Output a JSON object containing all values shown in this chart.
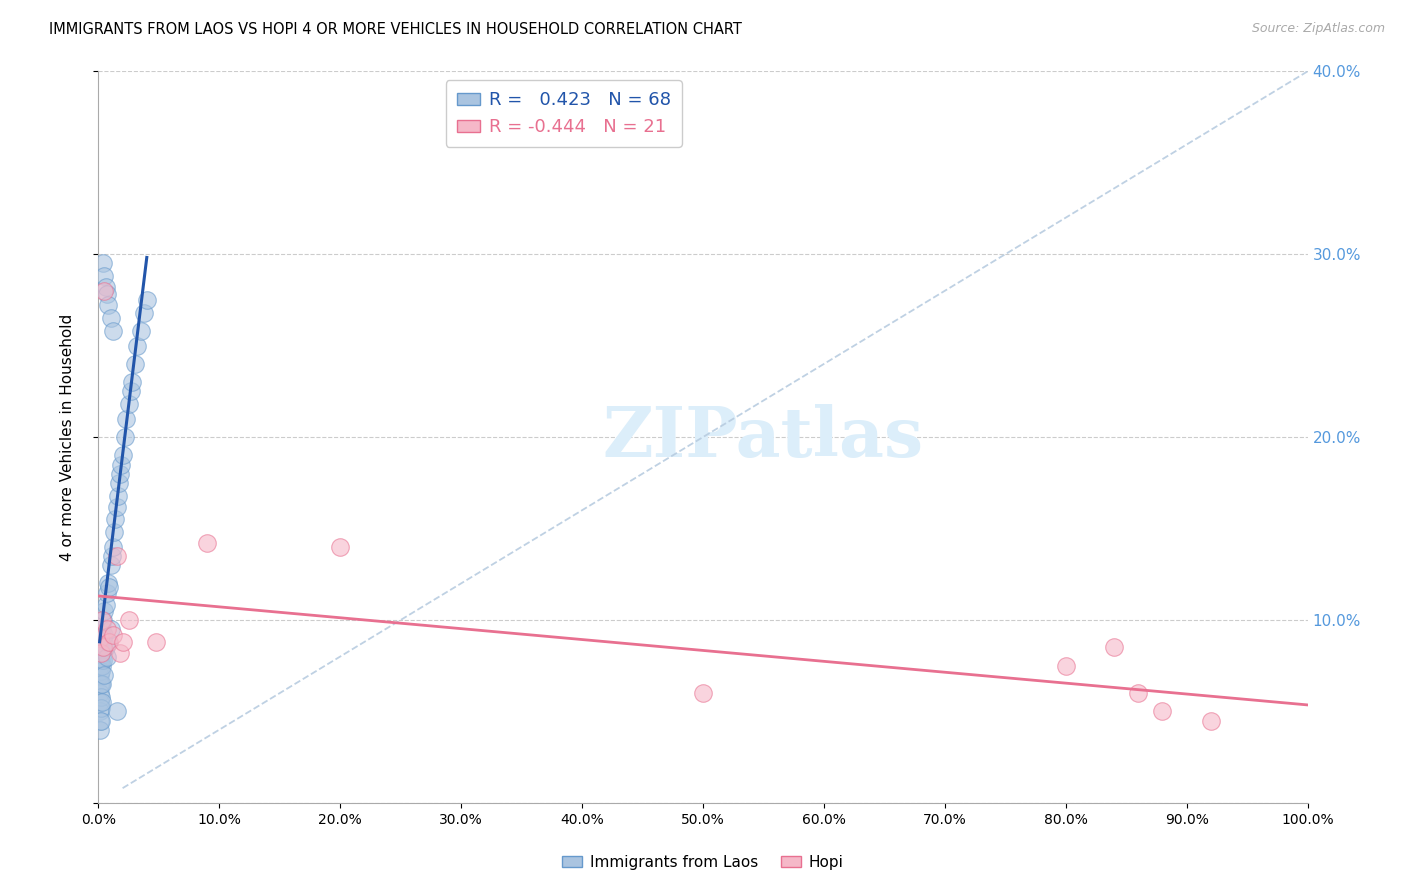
{
  "title": "IMMIGRANTS FROM LAOS VS HOPI 4 OR MORE VEHICLES IN HOUSEHOLD CORRELATION CHART",
  "source": "Source: ZipAtlas.com",
  "ylabel": "4 or more Vehicles in Household",
  "color_laos": "#aac4e0",
  "color_laos_edge": "#6699cc",
  "color_hopi": "#f5b8c8",
  "color_hopi_edge": "#e87090",
  "color_laos_line": "#2255aa",
  "color_hopi_line": "#e87090",
  "color_diagonal": "#b8cce0",
  "color_right_axis": "#5599dd",
  "watermark_color": "#dceefa",
  "R_laos": 0.423,
  "N_laos": 68,
  "R_hopi": -0.444,
  "N_hopi": 21,
  "legend_laos": "Immigrants from Laos",
  "legend_hopi": "Hopi",
  "laos_x": [
    0.001,
    0.001,
    0.001,
    0.001,
    0.001,
    0.001,
    0.001,
    0.001,
    0.001,
    0.001,
    0.001,
    0.002,
    0.002,
    0.002,
    0.002,
    0.002,
    0.002,
    0.002,
    0.002,
    0.002,
    0.003,
    0.003,
    0.003,
    0.003,
    0.003,
    0.004,
    0.004,
    0.004,
    0.005,
    0.005,
    0.005,
    0.006,
    0.006,
    0.007,
    0.007,
    0.008,
    0.008,
    0.009,
    0.01,
    0.01,
    0.011,
    0.012,
    0.013,
    0.014,
    0.015,
    0.016,
    0.017,
    0.018,
    0.019,
    0.02,
    0.022,
    0.023,
    0.025,
    0.027,
    0.028,
    0.03,
    0.032,
    0.035,
    0.038,
    0.04,
    0.004,
    0.005,
    0.006,
    0.007,
    0.008,
    0.01,
    0.012,
    0.015
  ],
  "laos_y": [
    0.09,
    0.085,
    0.08,
    0.075,
    0.07,
    0.065,
    0.06,
    0.055,
    0.05,
    0.045,
    0.04,
    0.095,
    0.088,
    0.082,
    0.078,
    0.072,
    0.065,
    0.058,
    0.052,
    0.045,
    0.095,
    0.085,
    0.075,
    0.065,
    0.055,
    0.1,
    0.09,
    0.078,
    0.105,
    0.092,
    0.07,
    0.108,
    0.085,
    0.115,
    0.08,
    0.12,
    0.088,
    0.118,
    0.13,
    0.095,
    0.135,
    0.14,
    0.148,
    0.155,
    0.162,
    0.168,
    0.175,
    0.18,
    0.185,
    0.19,
    0.2,
    0.21,
    0.218,
    0.225,
    0.23,
    0.24,
    0.25,
    0.258,
    0.268,
    0.275,
    0.295,
    0.288,
    0.282,
    0.278,
    0.272,
    0.265,
    0.258,
    0.05
  ],
  "hopi_x": [
    0.001,
    0.002,
    0.003,
    0.004,
    0.005,
    0.007,
    0.009,
    0.012,
    0.015,
    0.018,
    0.02,
    0.025,
    0.048,
    0.09,
    0.2,
    0.5,
    0.8,
    0.84,
    0.86,
    0.88,
    0.92
  ],
  "hopi_y": [
    0.09,
    0.082,
    0.1,
    0.085,
    0.28,
    0.095,
    0.088,
    0.092,
    0.135,
    0.082,
    0.088,
    0.1,
    0.088,
    0.142,
    0.14,
    0.06,
    0.075,
    0.085,
    0.06,
    0.05,
    0.045
  ],
  "xlim": [
    0.0,
    1.0
  ],
  "ylim": [
    0.0,
    0.4
  ],
  "xticks": [
    0.0,
    0.1,
    0.2,
    0.3,
    0.4,
    0.5,
    0.6,
    0.7,
    0.8,
    0.9,
    1.0
  ],
  "yticks": [
    0.0,
    0.1,
    0.2,
    0.3,
    0.4
  ]
}
